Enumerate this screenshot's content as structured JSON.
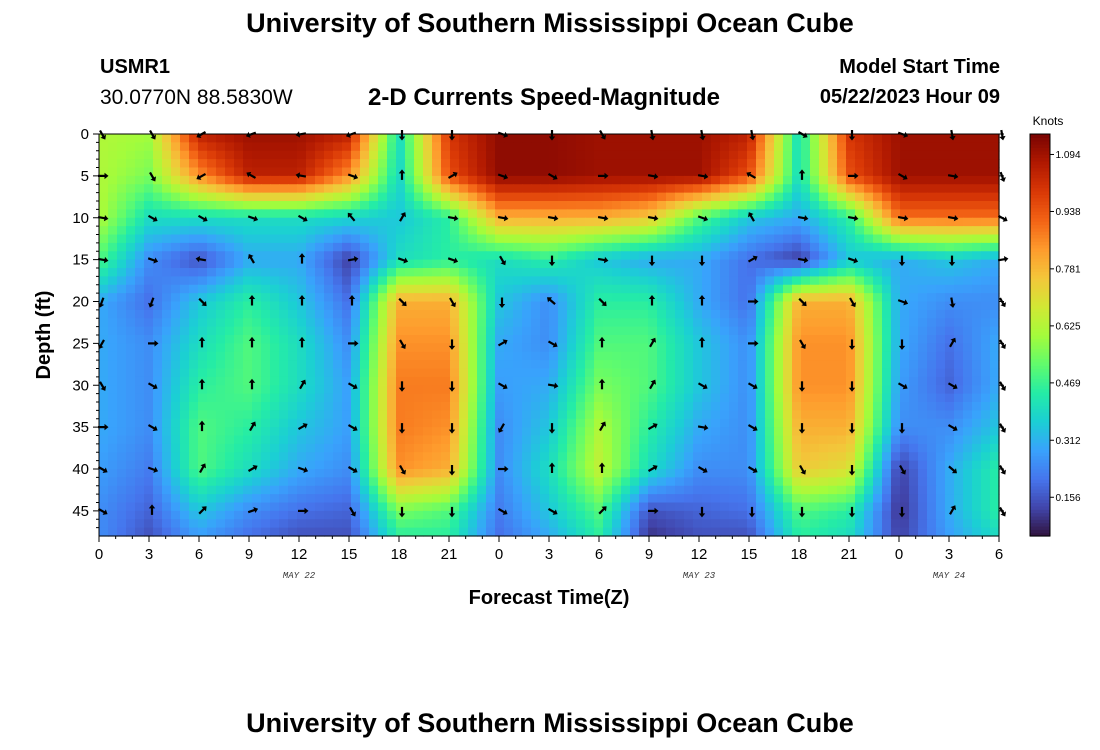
{
  "header": {
    "title": "University of Southern Mississippi Ocean Cube",
    "station_id": "USMR1",
    "station_coords": "30.0770N  88.5830W",
    "product_title": "2-D Currents Speed-Magnitude",
    "model_start_label": "Model Start Time",
    "model_start_value": "05/22/2023 Hour 09"
  },
  "footer": {
    "title": "University of Southern Mississippi Ocean Cube"
  },
  "chart_data": {
    "type": "heatmap",
    "title": "2-D Currents Speed-Magnitude",
    "xlabel": "Forecast Time(Z)",
    "ylabel": "Depth (ft)",
    "x_tick_labels": [
      "0",
      "3",
      "6",
      "9",
      "12",
      "15",
      "18",
      "21",
      "0",
      "3",
      "6",
      "9",
      "12",
      "15",
      "18",
      "21",
      "0",
      "3",
      "6"
    ],
    "x_hours": [
      0,
      3,
      6,
      9,
      12,
      15,
      18,
      21,
      24,
      27,
      30,
      33,
      36,
      39,
      42,
      45,
      48,
      51,
      54
    ],
    "date_labels": [
      {
        "text": "MAY 22",
        "hour": 12
      },
      {
        "text": "MAY 23",
        "hour": 36
      },
      {
        "text": "MAY 24",
        "hour": 51
      }
    ],
    "y_ticks": [
      0,
      5,
      10,
      15,
      20,
      25,
      30,
      35,
      40,
      45
    ],
    "ylim": [
      48,
      0
    ],
    "xlim": [
      0,
      54
    ],
    "colorbar": {
      "unit": "Knots",
      "ticks": [
        0.156,
        0.312,
        0.469,
        0.625,
        0.781,
        0.938,
        1.094
      ],
      "tick_labels": [
        "0.156",
        "0.312",
        "0.469",
        "0.625",
        "0.781",
        "0.938",
        "1.094"
      ],
      "range": [
        0.05,
        1.15
      ],
      "colors": [
        "#30123b",
        "#4145ab",
        "#4675ed",
        "#39a2fc",
        "#1bcfd4",
        "#24eca6",
        "#61fc6c",
        "#a4fc3b",
        "#d1e834",
        "#f3c63a",
        "#fe9b2d",
        "#f36315",
        "#d93806",
        "#b11901",
        "#7a0402"
      ]
    },
    "speed_grid": {
      "x_hours": [
        0,
        3,
        6,
        9,
        12,
        15,
        18,
        21,
        24,
        27,
        30,
        33,
        36,
        39,
        42,
        45,
        48,
        51,
        54
      ],
      "depths": [
        0,
        5,
        10,
        15,
        20,
        25,
        30,
        35,
        40,
        45,
        48
      ],
      "values": [
        [
          0.62,
          0.6,
          1.05,
          1.1,
          1.1,
          1.05,
          0.4,
          1.0,
          1.12,
          1.12,
          1.1,
          1.1,
          1.1,
          1.05,
          0.4,
          1.0,
          1.1,
          1.1,
          1.1
        ],
        [
          0.62,
          0.55,
          0.85,
          1.05,
          1.05,
          0.85,
          0.38,
          0.95,
          1.12,
          1.12,
          1.1,
          1.1,
          1.1,
          0.95,
          0.4,
          0.95,
          1.1,
          1.1,
          1.1
        ],
        [
          0.62,
          0.4,
          0.4,
          0.4,
          0.4,
          0.38,
          0.35,
          0.45,
          0.8,
          0.8,
          0.8,
          0.75,
          0.5,
          0.35,
          0.3,
          0.45,
          0.9,
          0.9,
          0.9
        ],
        [
          0.5,
          0.25,
          0.15,
          0.3,
          0.3,
          0.12,
          0.4,
          0.45,
          0.4,
          0.45,
          0.35,
          0.3,
          0.3,
          0.2,
          0.12,
          0.35,
          0.3,
          0.35,
          0.3
        ],
        [
          0.3,
          0.2,
          0.35,
          0.45,
          0.35,
          0.2,
          0.8,
          0.8,
          0.35,
          0.25,
          0.45,
          0.45,
          0.3,
          0.2,
          0.8,
          0.8,
          0.3,
          0.25,
          0.25
        ],
        [
          0.3,
          0.25,
          0.4,
          0.5,
          0.4,
          0.25,
          0.85,
          0.85,
          0.3,
          0.25,
          0.5,
          0.5,
          0.35,
          0.25,
          0.85,
          0.85,
          0.3,
          0.2,
          0.3
        ],
        [
          0.3,
          0.25,
          0.45,
          0.5,
          0.4,
          0.28,
          0.88,
          0.88,
          0.28,
          0.3,
          0.55,
          0.5,
          0.35,
          0.25,
          0.85,
          0.85,
          0.28,
          0.18,
          0.3
        ],
        [
          0.3,
          0.25,
          0.5,
          0.45,
          0.35,
          0.28,
          0.88,
          0.85,
          0.25,
          0.35,
          0.62,
          0.45,
          0.3,
          0.25,
          0.8,
          0.8,
          0.25,
          0.25,
          0.35
        ],
        [
          0.28,
          0.22,
          0.5,
          0.4,
          0.3,
          0.25,
          0.85,
          0.8,
          0.25,
          0.4,
          0.65,
          0.4,
          0.25,
          0.25,
          0.75,
          0.7,
          0.12,
          0.3,
          0.45
        ],
        [
          0.25,
          0.18,
          0.35,
          0.25,
          0.2,
          0.18,
          0.55,
          0.5,
          0.22,
          0.35,
          0.5,
          0.15,
          0.18,
          0.2,
          0.5,
          0.45,
          0.1,
          0.3,
          0.45
        ],
        [
          0.25,
          0.15,
          0.28,
          0.2,
          0.15,
          0.15,
          0.45,
          0.45,
          0.2,
          0.3,
          0.45,
          0.1,
          0.15,
          0.15,
          0.45,
          0.4,
          0.12,
          0.28,
          0.4
        ]
      ]
    },
    "current_vectors": {
      "x_hours": [
        0,
        3,
        6,
        9,
        12,
        15,
        18,
        21,
        24,
        27,
        30,
        33,
        36,
        39,
        42,
        45,
        48,
        51,
        54
      ],
      "depths": [
        0,
        5,
        10,
        15,
        20,
        25,
        30,
        35,
        40,
        45
      ],
      "direction_deg_math": [
        [
          -60,
          -60,
          -150,
          -160,
          -170,
          -160,
          -90,
          -90,
          -20,
          -90,
          -60,
          -80,
          -80,
          -80,
          -30,
          -90,
          -20,
          -80,
          -80
        ],
        [
          0,
          -60,
          -150,
          150,
          170,
          -20,
          90,
          30,
          -20,
          -30,
          0,
          -10,
          -10,
          150,
          90,
          0,
          -30,
          -10,
          -70
        ],
        [
          -10,
          -30,
          -30,
          -20,
          -30,
          130,
          60,
          -10,
          -10,
          -10,
          -10,
          -10,
          -20,
          120,
          -10,
          -10,
          -10,
          -10,
          -30
        ],
        [
          -10,
          -20,
          170,
          120,
          90,
          10,
          -20,
          -20,
          -60,
          -90,
          -10,
          -90,
          -90,
          30,
          -10,
          -20,
          -90,
          -90,
          10
        ],
        [
          -110,
          -110,
          -45,
          90,
          90,
          90,
          -45,
          -60,
          -90,
          140,
          -45,
          90,
          90,
          0,
          -45,
          -60,
          -20,
          -80,
          -60
        ],
        [
          -120,
          0,
          90,
          90,
          90,
          0,
          -60,
          -90,
          30,
          -30,
          90,
          60,
          90,
          0,
          -60,
          -90,
          -90,
          60,
          -60
        ],
        [
          -60,
          -30,
          90,
          90,
          60,
          -30,
          -90,
          -90,
          -30,
          -10,
          90,
          60,
          -30,
          -30,
          -90,
          -90,
          -30,
          -30,
          -60
        ],
        [
          0,
          -30,
          90,
          60,
          30,
          -30,
          -90,
          -90,
          -120,
          -90,
          60,
          30,
          -10,
          -30,
          -90,
          -90,
          -90,
          -30,
          -60
        ],
        [
          -30,
          -20,
          60,
          30,
          -20,
          -30,
          -60,
          -90,
          0,
          90,
          90,
          30,
          -30,
          -30,
          -60,
          -90,
          -60,
          -40,
          -60
        ],
        [
          -30,
          90,
          45,
          20,
          0,
          -60,
          -90,
          -90,
          -30,
          -30,
          45,
          0,
          -90,
          -90,
          -90,
          -90,
          -90,
          60,
          -60
        ]
      ]
    }
  }
}
